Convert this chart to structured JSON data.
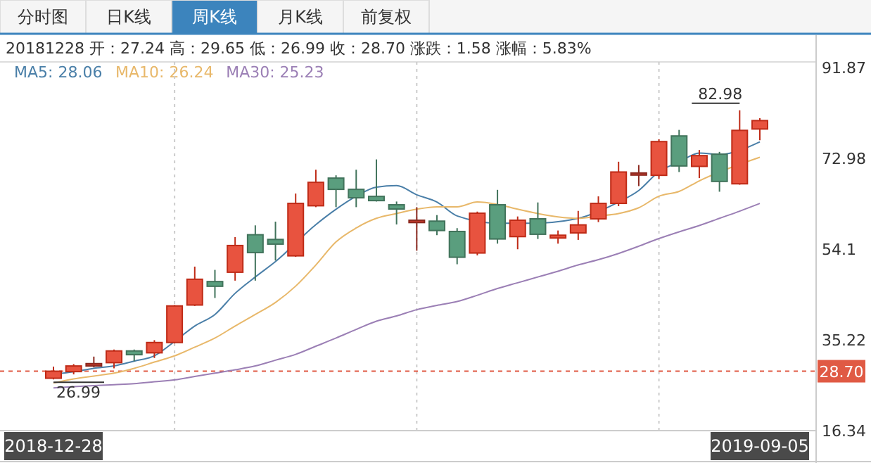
{
  "chart_data": {
    "type": "candlestick",
    "title": "20181228 开：27.24 高：29.65 低：26.99 收：28.70 涨跌：1.58 涨幅：5.83%",
    "categories": [
      "2018-12-28",
      null,
      null,
      null,
      null,
      null,
      null,
      null,
      null,
      null,
      null,
      null,
      null,
      null,
      null,
      null,
      null,
      null,
      null,
      null,
      null,
      null,
      null,
      null,
      null,
      null,
      null,
      null,
      null,
      null,
      null,
      null,
      null,
      null,
      null,
      "2019-09-05"
    ],
    "ohlc": [
      [
        27.24,
        29.65,
        26.99,
        28.7
      ],
      [
        28.62,
        30.18,
        28.04,
        29.79
      ],
      [
        29.79,
        31.74,
        29.5,
        30.28
      ],
      [
        30.48,
        33.21,
        29.3,
        32.92
      ],
      [
        32.92,
        33.21,
        30.77,
        32.14
      ],
      [
        32.53,
        35.16,
        31.45,
        34.67
      ],
      [
        34.67,
        42.47,
        34.48,
        42.28
      ],
      [
        42.47,
        50.46,
        42.28,
        47.83
      ],
      [
        47.35,
        49.78,
        43.94,
        46.37
      ],
      [
        49.29,
        56.6,
        47.54,
        54.85
      ],
      [
        57.09,
        59.04,
        47.54,
        53.38
      ],
      [
        56.11,
        59.82,
        51.72,
        55.14
      ],
      [
        52.7,
        65.66,
        52.5,
        63.61
      ],
      [
        63.12,
        70.62,
        62.83,
        67.99
      ],
      [
        68.87,
        69.45,
        62.83,
        66.53
      ],
      [
        66.53,
        70.62,
        62.83,
        64.78
      ],
      [
        65.07,
        72.76,
        64.0,
        64.19
      ],
      [
        63.32,
        64.0,
        59.23,
        62.44
      ],
      [
        59.62,
        62.83,
        53.77,
        60.11
      ],
      [
        59.92,
        61.18,
        57.0,
        57.97
      ],
      [
        57.77,
        58.46,
        50.95,
        52.41
      ],
      [
        53.29,
        61.9,
        52.8,
        61.57
      ],
      [
        63.32,
        66.43,
        55.24,
        56.21
      ],
      [
        56.7,
        60.89,
        54.07,
        60.11
      ],
      [
        60.4,
        63.81,
        56.21,
        57.19
      ],
      [
        56.41,
        57.97,
        55.24,
        56.99
      ],
      [
        57.48,
        62.05,
        56.02,
        59.14
      ],
      [
        60.4,
        65.07,
        59.72,
        63.61
      ],
      [
        63.61,
        72.28,
        63.03,
        70.14
      ],
      [
        69.65,
        71.6,
        67.21,
        69.94
      ],
      [
        69.45,
        76.96,
        68.67,
        76.47
      ],
      [
        77.64,
        78.9,
        70.14,
        71.4
      ],
      [
        71.31,
        74.72,
        68.87,
        73.55
      ],
      [
        73.84,
        74.33,
        66.04,
        68.18
      ],
      [
        67.69,
        82.98,
        67.5,
        78.8
      ],
      [
        79.09,
        81.33,
        76.76,
        80.84
      ]
    ],
    "colors": [
      "#e8533f",
      "#e8533f",
      "#c0392b",
      "#e8533f",
      "#5a9e7e",
      "#e8533f",
      "#e8533f",
      "#e8533f",
      "#5a9e7e",
      "#e8533f",
      "#5a9e7e",
      "#5a9e7e",
      "#e8533f",
      "#e8533f",
      "#5a9e7e",
      "#5a9e7e",
      "#5a9e7e",
      "#5a9e7e",
      "#c0392b",
      "#5a9e7e",
      "#5a9e7e",
      "#e8533f",
      "#5a9e7e",
      "#e8533f",
      "#5a9e7e",
      "#e8533f",
      "#e8533f",
      "#e8533f",
      "#e8533f",
      "#c0392b",
      "#e8533f",
      "#5a9e7e",
      "#e8533f",
      "#5a9e7e",
      "#e8533f",
      "#e8533f"
    ],
    "series": [
      {
        "type": "line",
        "name": "MA5: 28.06",
        "color": "#4a7fa8",
        "values": [
          28.06,
          28.6,
          29.3,
          29.8,
          30.8,
          31.9,
          34.9,
          38.1,
          40.5,
          44.9,
          48.3,
          51.5,
          null,
          59.2,
          62.4,
          65.1,
          67.0,
          67.3,
          65.4,
          63.9,
          61.0,
          null,
          59.5,
          null,
          59.5,
          59.8,
          60.5,
          null,
          63.9,
          66.3,
          70.2,
          72.2,
          74.1,
          73.8,
          null,
          76.4
        ]
      },
      {
        "type": "line",
        "name": "MA10: 26.24",
        "color": "#e8b86a",
        "values": [
          26.24,
          27.1,
          27.7,
          28.3,
          29.3,
          30.6,
          31.9,
          33.7,
          35.6,
          38.1,
          40.5,
          43.0,
          46.4,
          50.8,
          55.6,
          58.5,
          60.5,
          61.5,
          62.4,
          62.9,
          62.9,
          63.9,
          63.4,
          62.4,
          61.5,
          60.8,
          60.5,
          61.0,
          61.5,
          62.7,
          65.1,
          66.1,
          68.3,
          null,
          null,
          73.2
        ]
      },
      {
        "type": "line",
        "name": "MA30: 25.23",
        "color": "#9b7fb5",
        "values": [
          25.23,
          25.5,
          25.7,
          25.9,
          26.1,
          26.5,
          26.9,
          27.6,
          28.3,
          29.0,
          29.8,
          31.0,
          32.2,
          33.9,
          35.6,
          37.4,
          39.1,
          40.2,
          41.5,
          42.4,
          43.2,
          44.5,
          45.9,
          47.1,
          48.3,
          49.5,
          50.8,
          51.9,
          53.2,
          54.7,
          56.3,
          57.7,
          59.0,
          60.5,
          62.0,
          63.6
        ]
      }
    ],
    "ylim": [
      16.34,
      91.87
    ],
    "yticks": [
      16.34,
      35.22,
      54.1,
      72.98,
      91.87
    ],
    "ref_lines": [
      {
        "axis": "y",
        "value": 28.7,
        "label": "28.70",
        "color": "#e05a44",
        "line_style": "dashed"
      }
    ],
    "annotations": [
      "分时图",
      "日K线",
      "周K线",
      "月K线",
      "前复权",
      "82.98",
      {
        "text": "26.99",
        "x": "2018-12-28",
        "y": 26.99
      }
    ],
    "grid": "x",
    "legend": "top left"
  }
}
